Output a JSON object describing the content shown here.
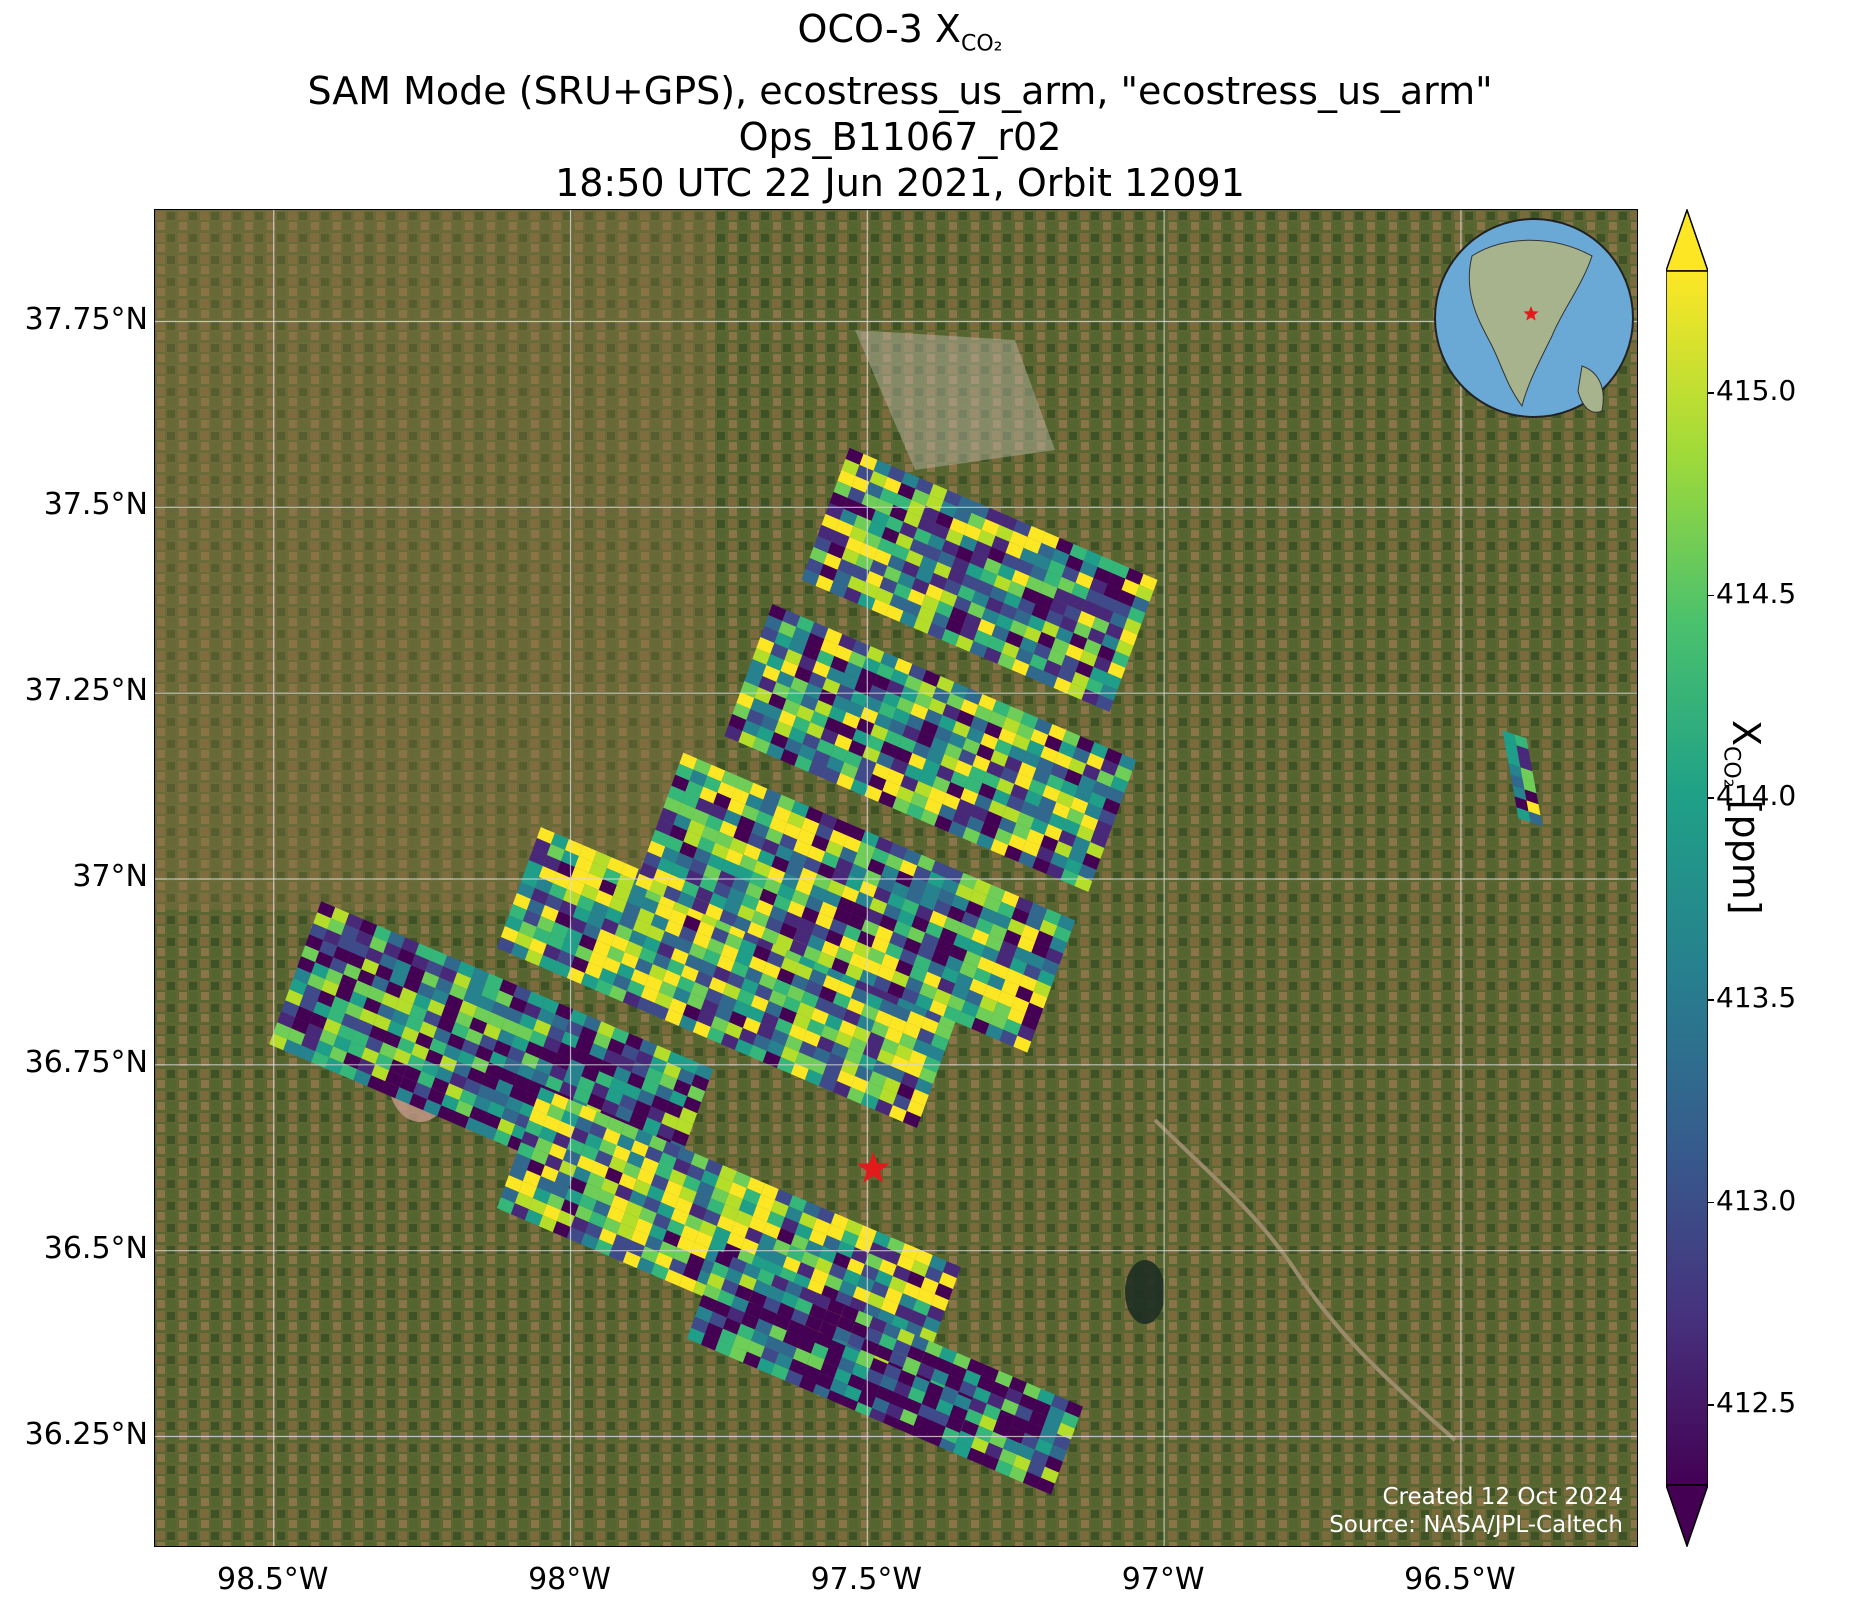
{
  "title": {
    "line1_prefix": "OCO-3 X",
    "line1_sub": "CO₂",
    "line2": "SAM Mode (SRU+GPS), ecostress_us_arm, \"ecostress_us_arm\"",
    "line3": "Ops_B11067_r02",
    "line4": "18:50 UTC 22 Jun 2021, Orbit 12091"
  },
  "map": {
    "lon_range": [
      -98.7,
      -96.2
    ],
    "lat_range": [
      36.1,
      37.9
    ],
    "lat_ticks": [
      "37.75°N",
      "37.5°N",
      "37.25°N",
      "37°N",
      "36.75°N",
      "36.5°N",
      "36.25°N"
    ],
    "lat_tick_values": [
      37.75,
      37.5,
      37.25,
      37.0,
      36.75,
      36.5,
      36.25
    ],
    "lon_ticks": [
      "98.5°W",
      "98°W",
      "97.5°W",
      "97°W",
      "96.5°W"
    ],
    "lon_tick_values": [
      -98.5,
      -98.0,
      -97.5,
      -97.0,
      -96.5
    ],
    "gridlines": true,
    "target": {
      "lon": -97.49,
      "lat": 36.61,
      "marker": "red-star"
    },
    "colors": {
      "background_land": "#4f5a2c",
      "gridline": "#d9d9d9",
      "target": "#e31a1c"
    }
  },
  "chart_data": {
    "type": "heatmap",
    "colormap": "viridis",
    "value_range": [
      412.3,
      415.3
    ],
    "colorbar_extend": "both",
    "swaths": [
      {
        "lon": -98.42,
        "lat": 36.97
      },
      {
        "lon": -98.05,
        "lat": 37.07
      },
      {
        "lon": -97.81,
        "lat": 37.17
      },
      {
        "lon": -97.66,
        "lat": 37.37
      },
      {
        "lon": -97.53,
        "lat": 37.58
      },
      {
        "lon": -98.05,
        "lat": 36.72
      },
      {
        "lon": -97.75,
        "lat": 36.5
      },
      {
        "lon": -97.56,
        "lat": 36.38
      },
      {
        "lon": -96.43,
        "lat": 37.2
      }
    ]
  },
  "colorbar": {
    "label_prefix": "X",
    "label_sub": "CO₂",
    "label_suffix": " [ppm]",
    "ticks": [
      "415.0",
      "414.5",
      "414.0",
      "413.5",
      "413.0",
      "412.5"
    ],
    "tick_values": [
      415.0,
      414.5,
      414.0,
      413.5,
      413.0,
      412.5
    ]
  },
  "credits": {
    "created": "Created 12 Oct 2024",
    "source": "Source: NASA/JPL-Caltech"
  },
  "inset": {
    "type": "globe",
    "marker": "red-star",
    "marker_color": "#e31a1c"
  }
}
